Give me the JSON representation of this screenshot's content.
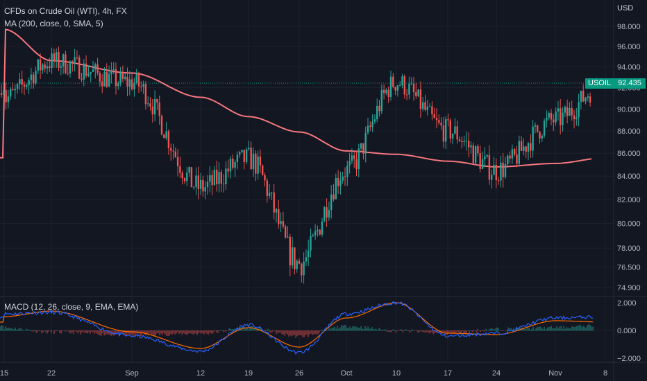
{
  "header": {
    "title": "CFDs on Crude Oil (WTI), 4h, FX",
    "ma_label": "MA (200, close, 0, SMA, 5)",
    "macd_label": "MACD (12, 26, close, 9, EMA, EMA)",
    "currency": "USD"
  },
  "price": {
    "symbol": "USOIL",
    "last": "92.435",
    "last_value": 92.435
  },
  "colors": {
    "background": "#131722",
    "up": "#26a69a",
    "down": "#ef5350",
    "ma": "#f7777f",
    "macd": "#2962ff",
    "signal": "#ff6d00",
    "badge": "#089981"
  },
  "chart_data": {
    "type": "candlestick",
    "title": "CFDs on Crude Oil (WTI), 4h, FX",
    "y_axis": {
      "ticks": [
        "98.000",
        "96.000",
        "94.000",
        "92.000",
        "90.000",
        "88.000",
        "86.000",
        "84.000",
        "82.000",
        "80.000",
        "78.000",
        "76.500",
        "74.900"
      ],
      "tick_values": [
        98,
        96,
        94,
        92,
        90,
        88,
        86,
        84,
        82,
        80,
        78,
        76.5,
        74.9
      ],
      "scale": "log"
    },
    "x_axis": {
      "ticks": [
        "15",
        "22",
        "Sep",
        "12",
        "19",
        "26",
        "Oct",
        "10",
        "17",
        "24",
        "Nov",
        "8"
      ]
    },
    "price_anchors": {
      "x": [
        "15",
        "22",
        "Sep",
        "12",
        "19",
        "26",
        "Oct",
        "10",
        "17",
        "24",
        "Nov",
        "8"
      ],
      "close": [
        91.0,
        94.5,
        92.5,
        83.0,
        85.5,
        76.8,
        84.5,
        92.5,
        88.0,
        84.5,
        89.0,
        92.435
      ]
    },
    "ma_series": {
      "name": "MA (200, close, 0, SMA, 5)",
      "values": [
        97.7,
        94.6,
        93.4,
        91.1,
        89.3,
        87.9,
        86.2,
        85.9,
        85.3,
        84.8,
        85.1,
        85.6
      ]
    },
    "macd_panel": {
      "y_ticks": [
        "2.000",
        "0.000",
        "−2.000"
      ],
      "y_values": [
        2,
        0,
        -2
      ],
      "macd": [
        1.2,
        1.3,
        -0.4,
        -1.5,
        0.4,
        -1.6,
        1.2,
        2.0,
        -0.4,
        -0.2,
        0.9,
        1.0
      ],
      "signal": [
        1.0,
        1.4,
        -0.1,
        -1.3,
        0.2,
        -1.2,
        0.9,
        2.0,
        -0.2,
        -0.3,
        0.7,
        0.6
      ]
    }
  }
}
